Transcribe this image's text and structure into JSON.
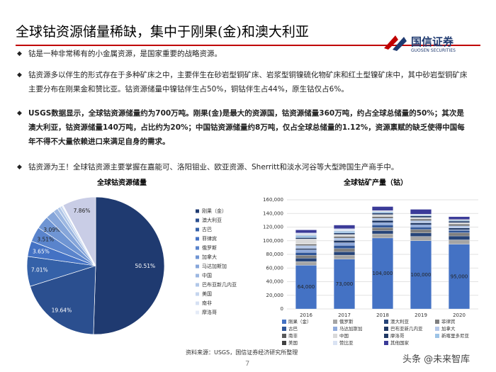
{
  "title": "全球钴资源储量稀缺，集中于刚果(金)和澳大利亚",
  "logo": {
    "name": "国信证券",
    "name_en": "GUOSEN SECURITIES"
  },
  "bullets": [
    "钴是一种非常稀有的小金属资源，是国家重要的战略资源。",
    "钴资源多以伴生的形式存在于多种矿床之中，主要伴生在砂岩型铜矿床、岩浆型铜镍硫化物矿床和红土型镍矿床中，其中砂岩型铜矿床主要分布在刚果金和赞比亚。钴资源储量中镍钴伴生占50%，铜钴伴生占44%，原生钴仅占6%。",
    "USGS数据显示，全球钴资源储量约为700万吨。刚果(金)是最大的资源国，钴资源储量360万吨，约占全球总储量的50%；其次是澳大利亚，钴资源储量140万吨，占比约为20%；中国钴资源储量约8万吨，仅占全球总储量的1.12%，资源禀赋的缺乏使得中国每年不得不大量依赖进口来满足自身的需求。",
    "钴资源为王！全球钴资源主要掌握在嘉能可、洛阳钼业、欧亚资源、Sherritt和淡水河谷等大型跨国生产商手中。"
  ],
  "source": "资料来源：USGS，国信证券经济研究所整理",
  "page_number": "7",
  "watermark": "头条 @未来智库",
  "chart_data": [
    {
      "type": "pie",
      "title": "全球钴资源储量",
      "categories": [
        "刚果（金）",
        "澳大利亚",
        "古巴",
        "菲律宾",
        "俄罗斯",
        "加拿大",
        "马达加斯加",
        "中国",
        "巴布亚新几内亚",
        "美国",
        "南非",
        "摩洛哥",
        null
      ],
      "values": [
        50.51,
        19.64,
        7.01,
        3.65,
        3.51,
        3.09,
        2.1,
        1.12,
        0.7,
        0.5,
        0.2,
        0.11,
        7.86
      ],
      "value_labels": [
        "50.51%",
        "19.64%",
        "7.01%",
        "3.65%",
        "3.51%",
        "3.09%",
        null,
        null,
        null,
        null,
        null,
        null,
        "7.86%"
      ],
      "colors": [
        "#1f3a70",
        "#2b4f8f",
        "#3561a8",
        "#4472c4",
        "#5a84cc",
        "#6f95d3",
        "#86a6da",
        "#9cb7e1",
        "#b1c7e8",
        "#c5d5ee",
        "#d6e1f3",
        "#e4ebf7",
        "#c9cde6"
      ]
    },
    {
      "type": "stacked-bar",
      "title": "全球钴矿产量（钴）",
      "categories": [
        "2016",
        "2017",
        "2018",
        "2019",
        "2020"
      ],
      "ylim": [
        0,
        160000
      ],
      "yticks": [
        0,
        {
          "value": 20000,
          "label": "20,000"
        },
        {
          "value": 40000,
          "label": "40,000"
        },
        {
          "value": 60000,
          "label": "60,000"
        },
        {
          "value": 80000,
          "label": "80,000"
        },
        {
          "value": 100000,
          "label": "100,000"
        },
        {
          "value": 120000,
          "label": "120,000"
        },
        {
          "value": 140000,
          "label": "140,000"
        },
        {
          "value": 160000,
          "label": "160,000"
        }
      ],
      "grid": true,
      "series": [
        {
          "name": "刚果（金）",
          "color": "#4472c4",
          "values": [
            64000,
            73000,
            104000,
            100000,
            95000
          ],
          "value_labels": [
            "64,000",
            "73,000",
            "104,000",
            "100,000",
            "95,000"
          ]
        },
        {
          "name": "俄罗斯",
          "color": "#a5a5a5",
          "values": [
            5500,
            5900,
            6100,
            6300,
            6300
          ]
        },
        {
          "name": "澳大利亚",
          "color": "#264478",
          "values": [
            5000,
            5000,
            4700,
            5100,
            5700
          ]
        },
        {
          "name": "菲律宾",
          "color": "#7f7f7f",
          "values": [
            4200,
            4600,
            4600,
            5100,
            4700
          ]
        },
        {
          "name": "古巴",
          "color": "#2f5597",
          "values": [
            4200,
            4800,
            3800,
            3500,
            3600
          ]
        },
        {
          "name": "马达加斯加",
          "color": "#8faadc",
          "values": [
            3800,
            3800,
            3400,
            3300,
            700
          ]
        },
        {
          "name": "巴布亚新几内亚",
          "color": "#203864",
          "values": [
            2100,
            3300,
            3200,
            2900,
            2800
          ]
        },
        {
          "name": "加拿大",
          "color": "#b4c7e7",
          "values": [
            4200,
            3700,
            3500,
            3300,
            3200
          ]
        },
        {
          "name": "南非",
          "color": "#595959",
          "values": [
            1900,
            2000,
            2000,
            2100,
            2200
          ]
        },
        {
          "name": "中国",
          "color": "#d9d9d9",
          "values": [
            7700,
            3100,
            3100,
            2500,
            2300
          ]
        },
        {
          "name": "摩洛哥",
          "color": "#1f3864",
          "values": [
            1900,
            2100,
            2300,
            2300,
            2300
          ]
        },
        {
          "name": "新喀里多尼亚",
          "color": "#9dc3e6",
          "values": [
            3300,
            2800,
            2100,
            1600,
            1500
          ]
        },
        {
          "name": "美国",
          "color": "#404040",
          "values": [
            700,
            500,
            500,
            500,
            600
          ]
        },
        {
          "name": "赞比亚",
          "color": "#dae3f3",
          "values": [
            2900,
            3000,
            1000,
            500,
            300
          ]
        },
        {
          "name": "其他国家",
          "color": "#3b3b98",
          "values": [
            4500,
            5400,
            5800,
            7000,
            4000
          ]
        }
      ]
    }
  ]
}
